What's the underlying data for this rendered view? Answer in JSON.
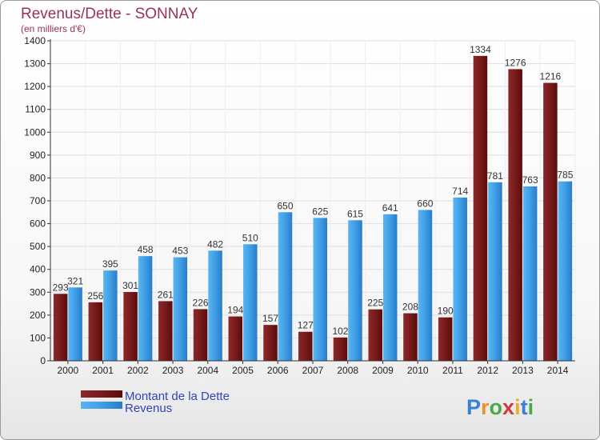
{
  "chart_data": {
    "type": "bar",
    "title": "Revenus/Dette - SONNAY",
    "subtitle": "(en milliers d'€)",
    "categories": [
      "2000",
      "2001",
      "2002",
      "2003",
      "2004",
      "2005",
      "2006",
      "2007",
      "2008",
      "2009",
      "2010",
      "2011",
      "2012",
      "2013",
      "2014"
    ],
    "series": [
      {
        "name": "Montant de la Dette",
        "color": "#7a1a1a",
        "values": [
          293,
          256,
          301,
          261,
          226,
          194,
          157,
          127,
          102,
          225,
          208,
          190,
          1334,
          1276,
          1216
        ]
      },
      {
        "name": "Revenus",
        "color": "#3d9ee8",
        "values": [
          321,
          395,
          458,
          453,
          482,
          510,
          650,
          625,
          615,
          641,
          660,
          714,
          781,
          763,
          785
        ]
      }
    ],
    "ylim": [
      0,
      1400
    ],
    "yticks": [
      0,
      100,
      200,
      300,
      400,
      500,
      600,
      700,
      800,
      900,
      1000,
      1100,
      1200,
      1300,
      1400
    ],
    "grid": true,
    "legend_position": "bottom-left"
  },
  "logo": {
    "text": "Proxiti"
  }
}
